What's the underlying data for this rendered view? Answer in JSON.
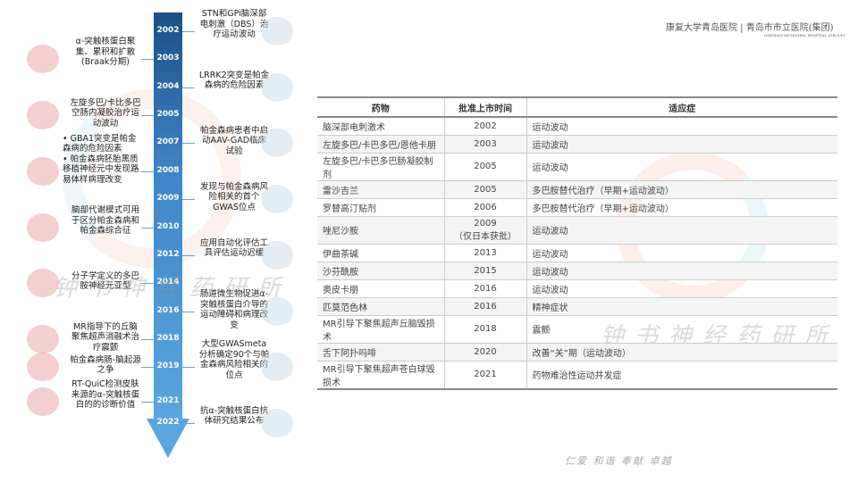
{
  "header": {
    "logo_left": "康复大学青岛医院",
    "logo_right": "青岛市市立医院(集团)",
    "logo_sub": "QINGDAO MUNICIPAL HOSPITAL (GROUP)"
  },
  "watermark": "钟书神经药研所",
  "slogan": "仁爱 和谐 奉献 卓越",
  "timeline": {
    "years": [
      "2002",
      "2003",
      "2004",
      "2005",
      "2007",
      "2008",
      "2009",
      "2010",
      "2012",
      "2014",
      "2016",
      "2018",
      "2019",
      "2021",
      "2022"
    ],
    "left": [
      {
        "year": "2003",
        "text": "α-突触核蛋白聚集、累积和扩散(Braak分期)"
      },
      {
        "year": "2005",
        "text": "左旋多巴/卡比多巴空肠内凝胶治疗运动波动"
      },
      {
        "year": "2008",
        "text": "• GBA1突变是帕金森病的危险因素\n• 帕金森病胚胎黑质移植神经元中发现路易体样病理改变"
      },
      {
        "year": "2010",
        "text": "脑部代谢模式可用于区分帕金森病和帕金森综合征"
      },
      {
        "year": "2014",
        "text": "分子学定义的多巴胺神经元亚型"
      },
      {
        "year": "2018",
        "text": "MR指导下的丘脑聚焦超声消融术治疗震颤"
      },
      {
        "year": "2019",
        "text": "帕金森病肠-脑起源之争"
      },
      {
        "year": "2021",
        "text": "RT-QuiC检测皮肤来源的α-突触核蛋白的的诊断价值"
      }
    ],
    "right": [
      {
        "year": "2002",
        "text": "STN和GPi脑深部电刺激（DBS）治疗运动波动"
      },
      {
        "year": "2004",
        "text": "LRRK2突变是帕金森病的危险因素"
      },
      {
        "year": "2007",
        "text": "帕金森病患者中启动AAV-GAD临床试验"
      },
      {
        "year": "2009",
        "text": "发现与帕金森病风险相关的首个GWAS位点"
      },
      {
        "year": "2012",
        "text": "应用自动化评估工具评估运动迟缓"
      },
      {
        "year": "2016",
        "text": "肠道微生物促进α-突触核蛋白介导的运动障碍和病理改变"
      },
      {
        "year": "2019",
        "text": "大型GWASmeta分析确定90个与帕金森病风险相关的位点"
      },
      {
        "year": "2022",
        "text": "抗α-突触核蛋白抗体研究结果公布"
      }
    ]
  },
  "table": {
    "headers": [
      "药物",
      "批准上市时间",
      "适应症"
    ],
    "rows": [
      [
        "脑深部电刺激术",
        "2002",
        "运动波动"
      ],
      [
        "左旋多巴/卡巴多巴/恩他卡朋",
        "2003",
        "运动波动"
      ],
      [
        "左旋多巴/卡巴多巴肠凝胶制剂",
        "2005",
        "运动波动"
      ],
      [
        "雷沙吉兰",
        "2005",
        "多巴胺替代治疗（早期+运动波动）"
      ],
      [
        "罗替高汀贴剂",
        "2006",
        "多巴胺替代治疗（早期+运动波动）"
      ],
      [
        "唑尼沙胺",
        "2009\n（仅日本获批）",
        "运动波动"
      ],
      [
        "伊曲茶碱",
        "2013",
        "运动波动"
      ],
      [
        "沙芬酰胺",
        "2015",
        "运动波动"
      ],
      [
        "奥皮卡朋",
        "2016",
        "运动波动"
      ],
      [
        "匹莫范色林",
        "2016",
        "精神症状"
      ],
      [
        "MR引导下聚焦超声丘脑毁损术",
        "2018",
        "震颤"
      ],
      [
        "舌下阿扑吗啡",
        "2020",
        "改善“关”期（运动波动）"
      ],
      [
        "MR引导下聚焦超声苍白球毁损术",
        "2021",
        "药物难治性运动并发症"
      ]
    ]
  }
}
